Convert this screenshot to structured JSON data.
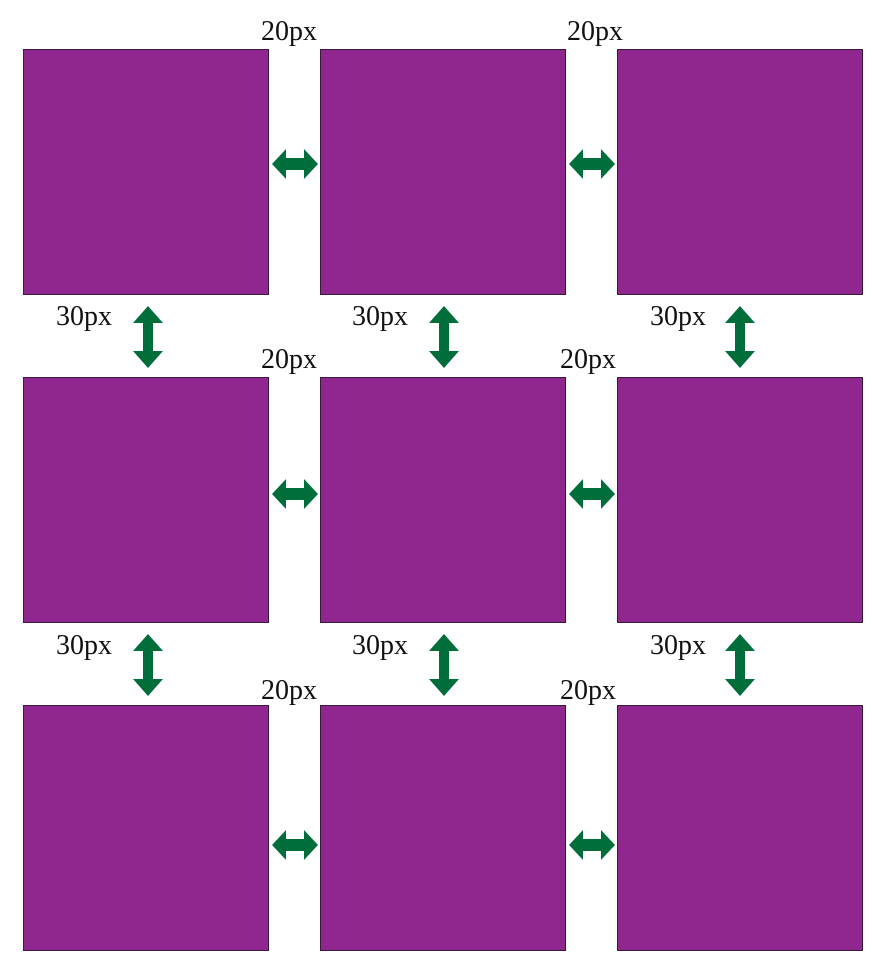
{
  "colors": {
    "box_fill": "#90278E",
    "arrow": "#006E3A"
  },
  "labels": {
    "col_gap": "20px",
    "row_gap": "30px"
  },
  "grid": {
    "rows": 3,
    "columns": 3
  }
}
